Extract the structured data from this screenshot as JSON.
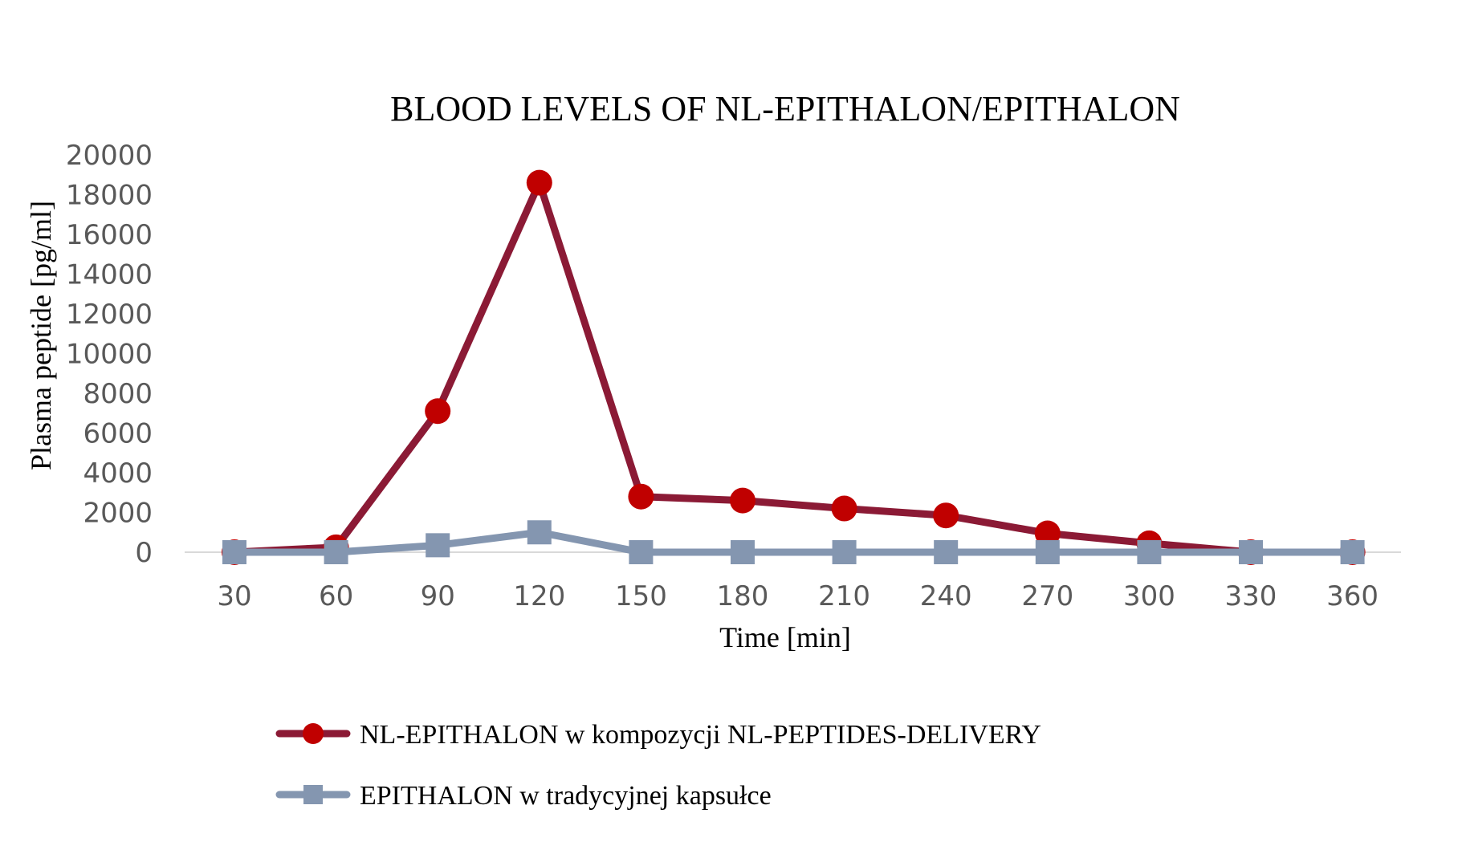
{
  "chart_data": {
    "type": "line",
    "title": "BLOOD LEVELS OF NL-EPITHALON/EPITHALON",
    "xlabel": "Time [min]",
    "ylabel": "Plasma peptide [pg/ml]",
    "categories": [
      "30",
      "60",
      "90",
      "120",
      "150",
      "180",
      "210",
      "240",
      "270",
      "300",
      "330",
      "360"
    ],
    "ylim": [
      0,
      20000
    ],
    "yticks": [
      "0",
      "2000",
      "4000",
      "6000",
      "8000",
      "10000",
      "12000",
      "14000",
      "16000",
      "18000",
      "20000"
    ],
    "ytick_values": [
      0,
      2000,
      4000,
      6000,
      8000,
      10000,
      12000,
      14000,
      16000,
      18000,
      20000
    ],
    "grid": false,
    "legend_position": "bottom",
    "series": [
      {
        "name": "NL-EPITHALON w kompozycji NL-PEPTIDES-DELIVERY",
        "marker": "circle",
        "line_color": "#8B1A35",
        "marker_color": "#C00000",
        "values": [
          0,
          250,
          7100,
          18600,
          2800,
          2600,
          2200,
          1850,
          950,
          450,
          0,
          0
        ]
      },
      {
        "name": "EPITHALON w tradycyjnej kapsułce",
        "marker": "square",
        "line_color": "#8496B0",
        "marker_color": "#8496B0",
        "values": [
          0,
          0,
          350,
          1000,
          0,
          0,
          0,
          0,
          0,
          0,
          0,
          0
        ]
      }
    ]
  }
}
